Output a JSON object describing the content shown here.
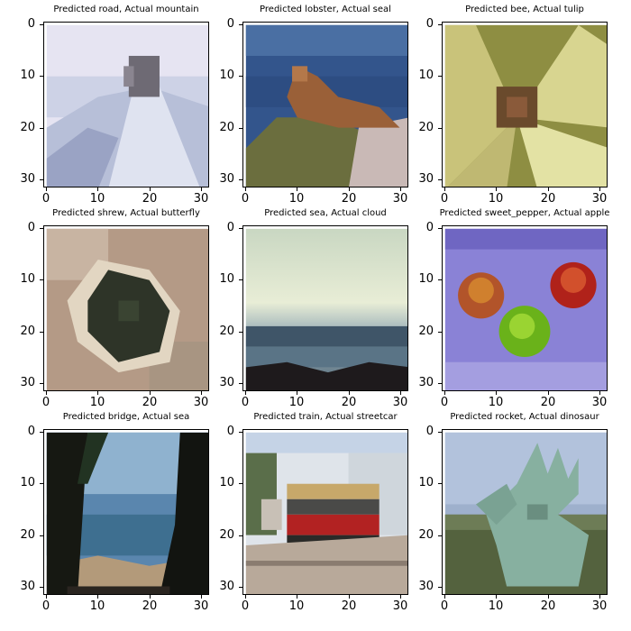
{
  "panels": [
    {
      "title": "Predicted road, Actual mountain",
      "scene": "mountain"
    },
    {
      "title": "Predicted lobster, Actual seal",
      "scene": "seal"
    },
    {
      "title": "Predicted bee, Actual tulip",
      "scene": "tulip"
    },
    {
      "title": "Predicted shrew, Actual butterfly",
      "scene": "butterfly"
    },
    {
      "title": "Predicted sea, Actual cloud",
      "scene": "cloud"
    },
    {
      "title": "Predicted sweet_pepper, Actual apple",
      "scene": "apple"
    },
    {
      "title": "Predicted bridge, Actual sea",
      "scene": "sea"
    },
    {
      "title": "Predicted train, Actual streetcar",
      "scene": "streetcar"
    },
    {
      "title": "Predicted rocket, Actual dinosaur",
      "scene": "dinosaur"
    }
  ],
  "axis": {
    "x_ticks": [
      "0",
      "10",
      "20",
      "30"
    ],
    "y_ticks": [
      "0",
      "10",
      "20",
      "30"
    ]
  }
}
